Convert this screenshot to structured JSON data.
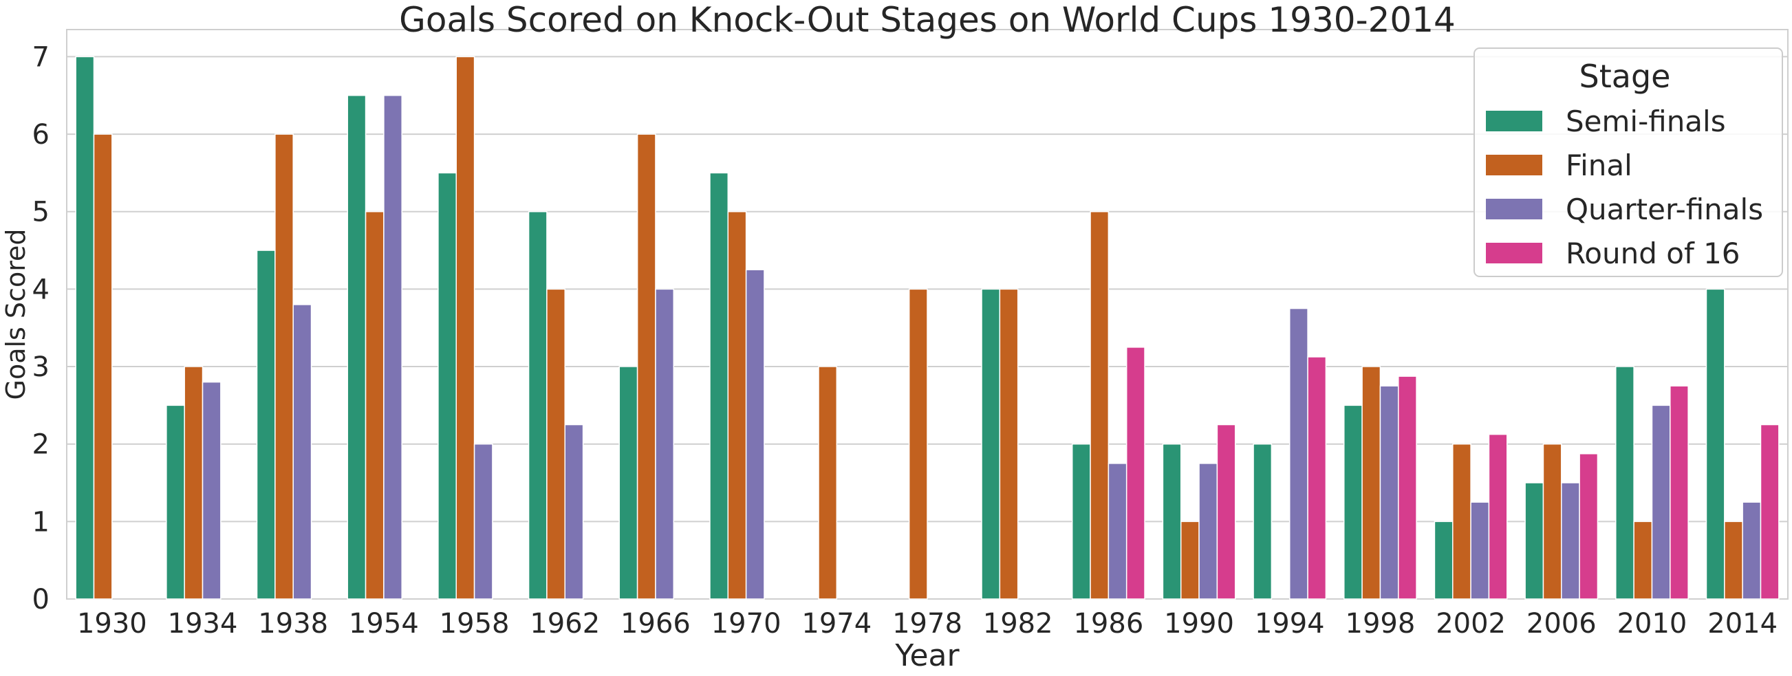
{
  "chart_data": {
    "type": "bar",
    "title": "Goals Scored on Knock-Out Stages on World Cups 1930-2014",
    "xlabel": "Year",
    "ylabel": "Goals Scored",
    "ylim": [
      0,
      7.35
    ],
    "yticks": [
      0,
      1,
      2,
      3,
      4,
      5,
      6,
      7
    ],
    "grid": true,
    "legend_title": "Stage",
    "legend_position": "top-right",
    "categories": [
      "1930",
      "1934",
      "1938",
      "1954",
      "1958",
      "1962",
      "1966",
      "1970",
      "1974",
      "1978",
      "1982",
      "1986",
      "1990",
      "1994",
      "1998",
      "2002",
      "2006",
      "2010",
      "2014"
    ],
    "series": [
      {
        "name": "Semi-finals",
        "color": "#2a9474",
        "values": [
          7,
          2.5,
          4.5,
          6.5,
          5.5,
          5,
          3,
          5.5,
          null,
          null,
          4,
          2,
          2,
          2,
          2.5,
          1,
          1.5,
          3,
          4
        ]
      },
      {
        "name": "Final",
        "color": "#c2611f",
        "values": [
          6,
          3,
          6,
          5,
          7,
          4,
          6,
          5,
          3,
          4,
          4,
          5,
          1,
          null,
          3,
          2,
          2,
          1,
          1
        ]
      },
      {
        "name": "Quarter-finals",
        "color": "#7d74b2",
        "values": [
          null,
          2.8,
          3.8,
          6.5,
          2,
          2.25,
          4,
          4.25,
          null,
          null,
          null,
          1.75,
          1.75,
          3.75,
          2.75,
          1.25,
          1.5,
          2.5,
          1.25
        ]
      },
      {
        "name": "Round of 16",
        "color": "#d63d8d",
        "values": [
          null,
          null,
          null,
          null,
          null,
          null,
          null,
          null,
          null,
          null,
          null,
          3.25,
          2.25,
          3.125,
          2.875,
          2.125,
          1.875,
          2.75,
          2.25
        ]
      }
    ]
  }
}
